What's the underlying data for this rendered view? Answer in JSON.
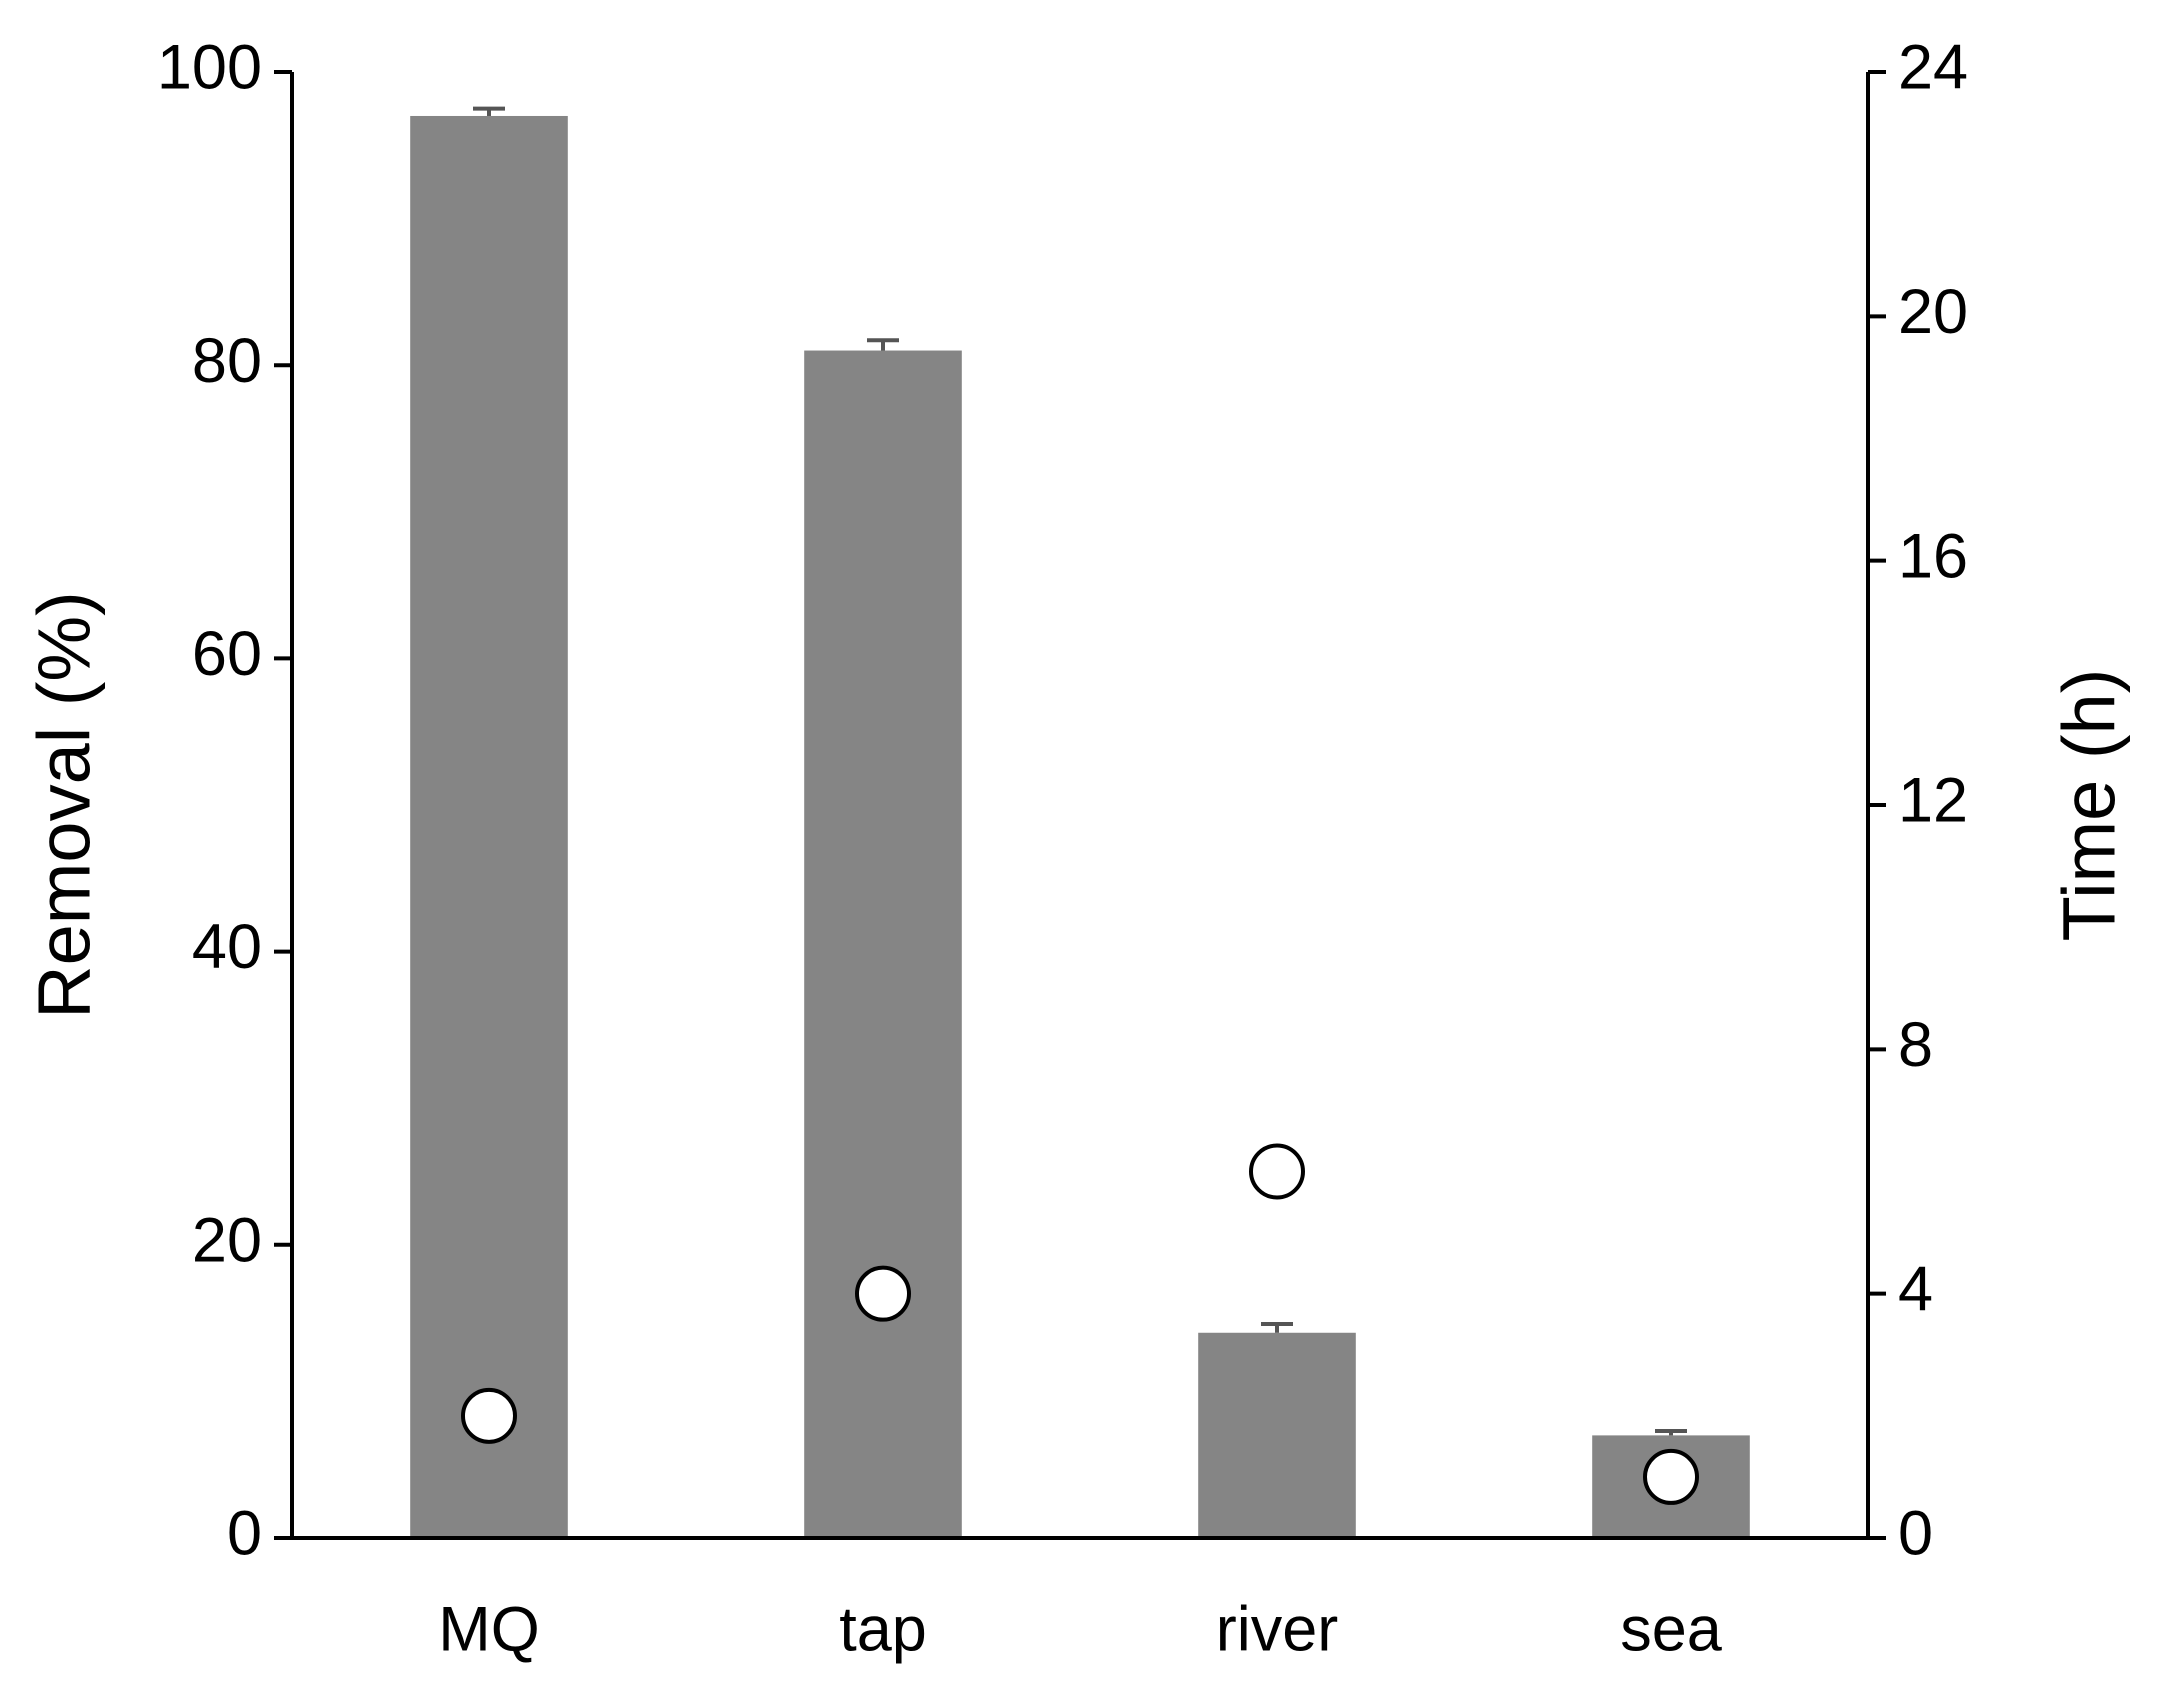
{
  "chart_data": {
    "type": "bar",
    "ylabel": "Removal (%)",
    "y2label": "Time (h)",
    "categories": [
      "MQ",
      "tap",
      "river",
      "sea"
    ],
    "series": [
      {
        "type": "bar",
        "color": "#858585",
        "values": [
          97,
          81,
          14,
          7
        ],
        "errors": [
          0.5,
          0.7,
          0.6,
          0.3
        ]
      },
      {
        "type": "scatter",
        "axis": "y2",
        "color": "#ffffff",
        "values": [
          2,
          4,
          6,
          1
        ]
      }
    ],
    "ylim": [
      0,
      100
    ],
    "yticks": [
      0,
      20,
      40,
      60,
      80,
      100
    ],
    "y2lim": [
      0,
      24
    ],
    "y2ticks": [
      0,
      4,
      8,
      12,
      16,
      20,
      24
    ]
  }
}
